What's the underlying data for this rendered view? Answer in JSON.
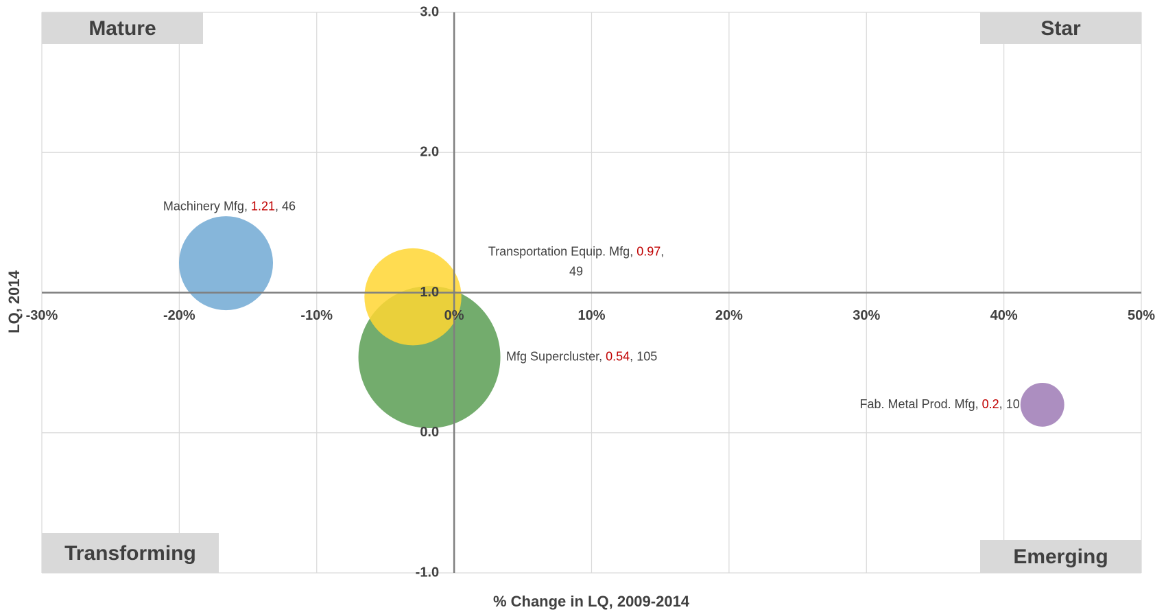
{
  "chart_data": {
    "type": "bubble",
    "xlabel": "% Change in LQ, 2009-2014",
    "ylabel": "LQ, 2014",
    "xlim": [
      -30,
      50
    ],
    "ylim": [
      -1,
      3
    ],
    "xticks": [
      {
        "value": -30,
        "label": "-30%"
      },
      {
        "value": -20,
        "label": "-20%"
      },
      {
        "value": -10,
        "label": "-10%"
      },
      {
        "value": 0,
        "label": "0%"
      },
      {
        "value": 10,
        "label": "10%"
      },
      {
        "value": 20,
        "label": "20%"
      },
      {
        "value": 30,
        "label": "30%"
      },
      {
        "value": 40,
        "label": "40%"
      },
      {
        "value": 50,
        "label": "50%"
      }
    ],
    "yticks": [
      {
        "value": -1,
        "label": "-1.0"
      },
      {
        "value": 0,
        "label": "0.0"
      },
      {
        "value": 1,
        "label": "1.0"
      },
      {
        "value": 2,
        "label": "2.0"
      },
      {
        "value": 3,
        "label": "3.0"
      }
    ],
    "x_axis_crosses_y": 1,
    "y_axis_crosses_x": 0,
    "grid": true,
    "quadrant_labels": {
      "top_left": "Mature",
      "top_right": "Star",
      "bottom_left": "Transforming",
      "bottom_right": "Emerging"
    },
    "series": [
      {
        "name": "Machinery Mfg",
        "color": "#7fb2d8",
        "x": [
          -16.6
        ],
        "values": [
          1.21
        ],
        "sizes": [
          46
        ]
      },
      {
        "name": "Mfg Supercluster",
        "color": "#5a9e53",
        "x": [
          -1.8
        ],
        "values": [
          0.54
        ],
        "sizes": [
          105
        ]
      },
      {
        "name": "Transportation Equip. Mfg",
        "color": "#ffd633",
        "x": [
          -3
        ],
        "values": [
          0.97
        ],
        "sizes": [
          49
        ]
      },
      {
        "name": "Fab. Metal Prod. Mfg",
        "color": "#9e7ab5",
        "x": [
          42.8
        ],
        "values": [
          0.2
        ],
        "sizes": [
          10
        ]
      }
    ]
  }
}
